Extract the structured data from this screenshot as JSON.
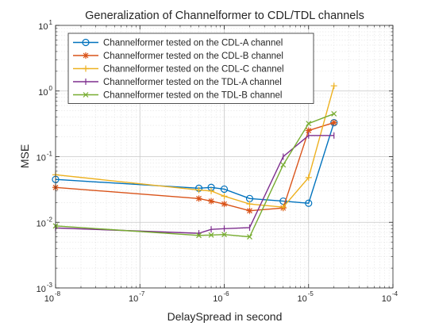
{
  "chart_data": {
    "type": "line",
    "title": "Generalization of Channelformer to CDL/TDL channels",
    "xlabel": "DelaySpread in second",
    "ylabel": "MSE",
    "xscale": "log",
    "yscale": "log",
    "xlim": [
      1e-08,
      0.0001
    ],
    "ylim": [
      0.001,
      10
    ],
    "grid": true,
    "legend_position": "top-left",
    "x_ticks": [
      {
        "base": "10",
        "exp": "-8",
        "value": 1e-08
      },
      {
        "base": "10",
        "exp": "-7",
        "value": 1e-07
      },
      {
        "base": "10",
        "exp": "-6",
        "value": 1e-06
      },
      {
        "base": "10",
        "exp": "-5",
        "value": 1e-05
      },
      {
        "base": "10",
        "exp": "-4",
        "value": 0.0001
      }
    ],
    "y_ticks": [
      {
        "base": "10",
        "exp": "-3",
        "value": 0.001
      },
      {
        "base": "10",
        "exp": "-2",
        "value": 0.01
      },
      {
        "base": "10",
        "exp": "-1",
        "value": 0.1
      },
      {
        "base": "10",
        "exp": "0",
        "value": 1
      },
      {
        "base": "10",
        "exp": "1",
        "value": 10
      }
    ],
    "series": [
      {
        "name": "Channelformer tested on the CDL-A channel",
        "color": "#0072BD",
        "marker": "circle",
        "x": [
          1e-08,
          5e-07,
          7e-07,
          1e-06,
          2e-06,
          5e-06,
          1e-05,
          2e-05
        ],
        "y": [
          0.045,
          0.033,
          0.034,
          0.032,
          0.023,
          0.021,
          0.0195,
          0.33
        ]
      },
      {
        "name": "Channelformer tested on the CDL-B channel",
        "color": "#D95319",
        "marker": "asterisk",
        "x": [
          1e-08,
          5e-07,
          7e-07,
          1e-06,
          2e-06,
          5e-06,
          1e-05,
          2e-05
        ],
        "y": [
          0.034,
          0.023,
          0.021,
          0.019,
          0.015,
          0.0165,
          0.25,
          0.33
        ]
      },
      {
        "name": "Channelformer tested on the CDL-C channel",
        "color": "#EDB120",
        "marker": "plus",
        "x": [
          1e-08,
          5e-07,
          7e-07,
          1e-06,
          2e-06,
          5e-06,
          1e-05,
          2e-05
        ],
        "y": [
          0.053,
          0.031,
          0.03,
          0.025,
          0.019,
          0.017,
          0.048,
          1.2
        ]
      },
      {
        "name": "Channelformer tested on the TDL-A channel",
        "color": "#7E2F8E",
        "marker": "vline",
        "x": [
          1e-08,
          5e-07,
          7e-07,
          1e-06,
          2e-06,
          5e-06,
          1e-05,
          2e-05
        ],
        "y": [
          0.0082,
          0.0068,
          0.0078,
          0.008,
          0.0083,
          0.1,
          0.21,
          0.21
        ]
      },
      {
        "name": "Channelformer tested on the TDL-B channel",
        "color": "#77AC30",
        "marker": "cross",
        "x": [
          1e-08,
          5e-07,
          7e-07,
          1e-06,
          2e-06,
          5e-06,
          1e-05,
          2e-05
        ],
        "y": [
          0.0088,
          0.0063,
          0.0064,
          0.0065,
          0.006,
          0.075,
          0.32,
          0.45
        ]
      }
    ]
  }
}
